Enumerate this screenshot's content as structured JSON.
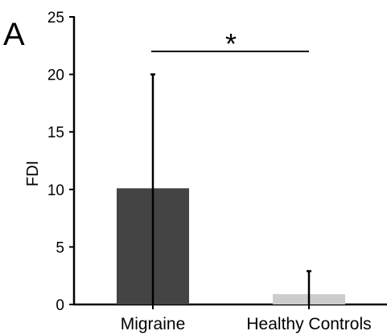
{
  "panel_label": "A",
  "significance_marker": "*",
  "chart_data": {
    "type": "bar",
    "title": "",
    "xlabel": "",
    "ylabel": "FDI",
    "categories": [
      "Migraine",
      "Healthy Controls"
    ],
    "values": [
      10.1,
      0.9
    ],
    "error_upper": [
      20,
      2.9
    ],
    "error_lower": [
      0,
      0
    ],
    "colors": [
      "#444444",
      "#cccccc"
    ],
    "ylim": [
      0,
      25
    ],
    "yticks": [
      0,
      5,
      10,
      15,
      20,
      25
    ],
    "grid": false,
    "legend": "none",
    "significance": {
      "between": [
        0,
        1
      ],
      "marker": "*"
    }
  }
}
